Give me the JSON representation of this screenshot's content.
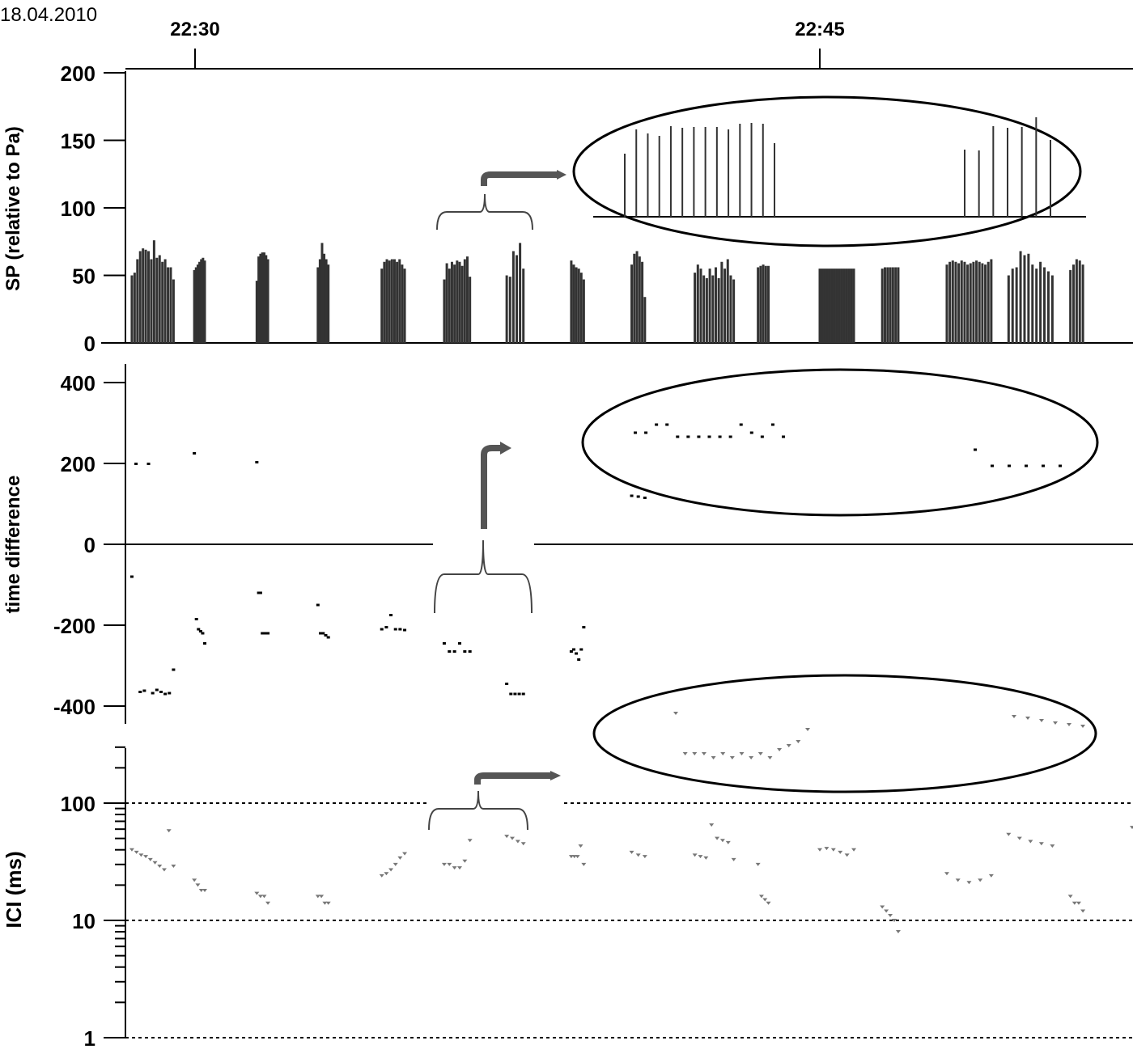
{
  "chart_data": {
    "type": "multi-panel",
    "date": "18.04.2010",
    "x_axis": {
      "ticks": [
        "22:30",
        "22:45"
      ],
      "range": [
        "22:28:20",
        "22:52:31"
      ]
    },
    "panels": [
      {
        "type": "bar",
        "ylabel": "SP (relative to Pa)",
        "ylim": [
          0,
          200
        ],
        "yticks": [
          "0",
          "50",
          "100",
          "150",
          "200"
        ],
        "grid": false
      },
      {
        "type": "scatter",
        "ylabel": "time difference",
        "ylim": [
          -450,
          450
        ],
        "yticks": [
          "-400",
          "-200",
          "0",
          "200",
          "400"
        ],
        "zero_line": true,
        "grid": false
      },
      {
        "type": "scatter",
        "ylabel": "ICI (ms)",
        "scale": "log",
        "ylim": [
          1,
          300
        ],
        "yticks": [
          "1",
          "10",
          "100"
        ],
        "dotted_gridlines": [
          1,
          10,
          100
        ],
        "marker": "triangle-down"
      }
    ],
    "bursts": [
      {
        "start": "22:28:29",
        "end": "22:29:29",
        "sp": [
          50,
          52,
          62,
          68,
          70,
          69,
          68,
          62,
          76,
          63,
          65,
          60,
          62,
          56,
          56,
          47
        ],
        "td": [
          -80,
          199,
          -365,
          -362,
          199,
          -368,
          -360,
          -365,
          -370,
          -368,
          -310
        ],
        "ici": [
          40,
          38,
          36,
          35,
          33,
          31,
          29,
          27,
          58,
          29
        ]
      },
      {
        "start": "22:29:59",
        "end": "22:30:14",
        "sp": [
          54,
          56,
          58,
          60,
          62,
          63,
          61
        ],
        "td": [
          225,
          -185,
          -210,
          -215,
          -220,
          -245
        ],
        "ici": [
          22,
          20,
          18,
          18
        ]
      },
      {
        "start": "22:31:29",
        "end": "22:31:45",
        "sp": [
          46,
          64,
          66,
          67,
          67,
          65,
          62
        ],
        "td": [
          203,
          -120,
          -120,
          -220,
          -220,
          -220,
          -220
        ],
        "ici": [
          17,
          16,
          16,
          14
        ]
      },
      {
        "start": "22:32:57",
        "end": "22:33:12",
        "sp": [
          56,
          62,
          74,
          66,
          62,
          58
        ],
        "td": [
          -150,
          -220,
          -220,
          -225,
          -230
        ],
        "ici": [
          16,
          16,
          14,
          14
        ]
      },
      {
        "start": "22:34:29",
        "end": "22:35:02",
        "sp": [
          55,
          60,
          62,
          61,
          62,
          62,
          60,
          62,
          58,
          55
        ],
        "td": [
          -210,
          -205,
          -175,
          -210,
          -210,
          -212
        ],
        "ici": [
          24,
          25,
          27,
          30,
          34,
          37
        ]
      },
      {
        "start": "22:35:59",
        "end": "22:36:36",
        "sp": [
          47,
          59,
          55,
          60,
          58,
          61,
          60,
          57,
          62,
          64,
          49
        ],
        "td": [
          -245,
          -265,
          -265,
          -245,
          -265,
          -265
        ],
        "ici": [
          30,
          30,
          28,
          28,
          32,
          48
        ]
      },
      {
        "start": "22:37:29",
        "end": "22:37:53",
        "sp": [
          50,
          49,
          68,
          65,
          74,
          55
        ],
        "td": [
          -345,
          -370,
          -370,
          -370,
          -370
        ],
        "ici": [
          52,
          50,
          47,
          45
        ]
      },
      {
        "start": "22:39:02",
        "end": "22:39:20",
        "sp": [
          61,
          58,
          56,
          55,
          52,
          47
        ],
        "td": [
          -265,
          -260,
          -270,
          -285,
          -260,
          -205
        ],
        "ici": [
          35,
          35,
          35,
          43,
          30
        ]
      },
      {
        "start": "22:40:29",
        "end": "22:40:48",
        "sp": [
          58,
          66,
          68,
          64,
          60,
          34
        ],
        "td": [
          120,
          118,
          115
        ],
        "ici": [
          38,
          36,
          35
        ]
      },
      {
        "start": "22:42:00",
        "end": "22:42:56",
        "sp": [
          52,
          58,
          55,
          50,
          48,
          55,
          50,
          56,
          48,
          60,
          55,
          62,
          50,
          47
        ],
        "ici": [
          36,
          35,
          34,
          65,
          50,
          48,
          46,
          33
        ]
      },
      {
        "start": "22:43:31",
        "end": "22:43:46",
        "sp": [
          56,
          57,
          58,
          57,
          57
        ],
        "ici": [
          30,
          16,
          15,
          14
        ]
      },
      {
        "start": "22:45:00",
        "end": "22:45:49",
        "sp": [
          55,
          55,
          55,
          55,
          55,
          55,
          55,
          55,
          55,
          55,
          55,
          55,
          55,
          55,
          55
        ],
        "ici": [
          40,
          41,
          40,
          38,
          36,
          40
        ]
      },
      {
        "start": "22:46:30",
        "end": "22:46:53",
        "sp": [
          55,
          56,
          56,
          56,
          56,
          56,
          56
        ],
        "ici": [
          13,
          12,
          11,
          10,
          8
        ]
      },
      {
        "start": "22:48:03",
        "end": "22:49:07",
        "sp": [
          58,
          60,
          61,
          60,
          59,
          61,
          60,
          58,
          59,
          60,
          61,
          60,
          59,
          58,
          60,
          62
        ],
        "ici": [
          25,
          22,
          21,
          22,
          24
        ]
      },
      {
        "start": "22:49:32",
        "end": "22:50:35",
        "sp": [
          50,
          55,
          56,
          68,
          65,
          66,
          58,
          55,
          60,
          56,
          53,
          50
        ],
        "ici": [
          54,
          50,
          47,
          45,
          43
        ]
      },
      {
        "start": "22:51:01",
        "end": "22:51:19",
        "sp": [
          54,
          58,
          62,
          61,
          58
        ],
        "ici": [
          16,
          14,
          14,
          12
        ]
      },
      {
        "start": "22:52:30",
        "end": "22:52:31",
        "ici": [
          62
        ]
      }
    ],
    "insets": {
      "sp": {
        "left": [
          78,
          108,
          103,
          100,
          112,
          110,
          111,
          111,
          111,
          108,
          115,
          116,
          115,
          91
        ],
        "right": [
          83,
          82,
          112,
          110,
          111,
          123,
          95
        ]
      },
      "td": {
        "left": [
          0,
          0,
          10,
          10,
          -5,
          -5,
          -5,
          -5,
          -5,
          -5,
          10,
          0,
          -5,
          10,
          -5
        ],
        "right": [
          40,
          20,
          20,
          20,
          20,
          20
        ]
      },
      "ici": {
        "left": [
          40,
          -10,
          -10,
          -10,
          -15,
          -10,
          -15,
          -10,
          -15,
          -10,
          -15,
          -5,
          0,
          5,
          20
        ],
        "right": [
          30,
          28,
          25,
          22,
          20,
          18
        ]
      }
    }
  }
}
